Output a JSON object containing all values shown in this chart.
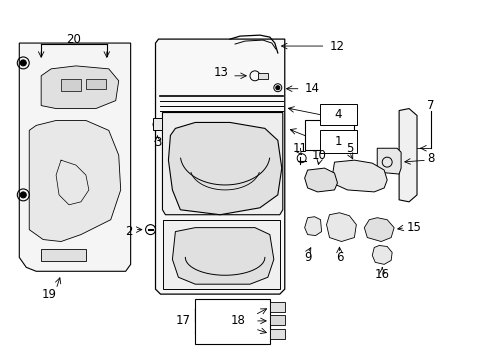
{
  "bg_color": "#ffffff",
  "line_color": "#000000",
  "text_color": "#000000",
  "font_size": 7.5
}
